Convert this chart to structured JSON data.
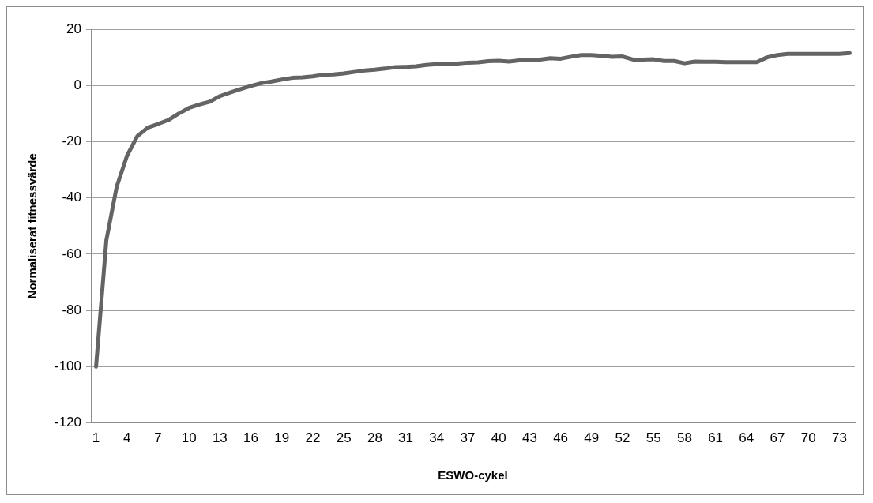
{
  "chart_data": {
    "type": "line",
    "xlabel": "ESWO-cykel",
    "ylabel": "Normaliserat fitnessvärde",
    "categories": [
      "1",
      null,
      null,
      "4",
      null,
      null,
      "7",
      null,
      null,
      "10",
      null,
      null,
      "13",
      null,
      null,
      "16",
      null,
      null,
      "19",
      null,
      null,
      "22",
      null,
      null,
      "25",
      null,
      null,
      "28",
      null,
      null,
      "31",
      null,
      null,
      "34",
      null,
      null,
      "37",
      null,
      null,
      "40",
      null,
      null,
      "43",
      null,
      null,
      "46",
      null,
      null,
      "49",
      null,
      null,
      "52",
      null,
      null,
      "55",
      null,
      null,
      "58",
      null,
      null,
      "61",
      null,
      null,
      "64",
      null,
      null,
      "67",
      null,
      null,
      "70",
      null,
      null,
      "73",
      null
    ],
    "series": [
      {
        "color": "#646464",
        "values": [
          -100,
          -55,
          -36,
          -25,
          -18,
          -15,
          -13.7,
          -12.3,
          -10,
          -8,
          -6.8,
          -5.8,
          -3.8,
          -2.5,
          -1.3,
          -0.2,
          0.8,
          1.4,
          2.1,
          2.7,
          2.9,
          3.2,
          3.8,
          3.9,
          4.3,
          4.8,
          5.3,
          5.6,
          6,
          6.5,
          6.6,
          6.8,
          7.3,
          7.6,
          7.7,
          7.8,
          8.1,
          8.2,
          8.6,
          8.8,
          8.5,
          8.9,
          9.1,
          9.2,
          9.7,
          9.5,
          10.2,
          10.8,
          10.8,
          10.5,
          10.2,
          10.3,
          9.2,
          9.2,
          9.3,
          8.7,
          8.7,
          7.9,
          8.5,
          8.4,
          8.4,
          8.3,
          8.3,
          8.3,
          8.3,
          10,
          10.8,
          11.2,
          11.2,
          11.2,
          11.2,
          11.2,
          11.2,
          11.5
        ]
      }
    ],
    "ylim": [
      -120,
      20
    ],
    "yticks": [
      -120,
      -100,
      -80,
      -60,
      -40,
      -20,
      0,
      20
    ],
    "grid": "y",
    "legend": false,
    "marker": "none",
    "line_style": "solid"
  }
}
